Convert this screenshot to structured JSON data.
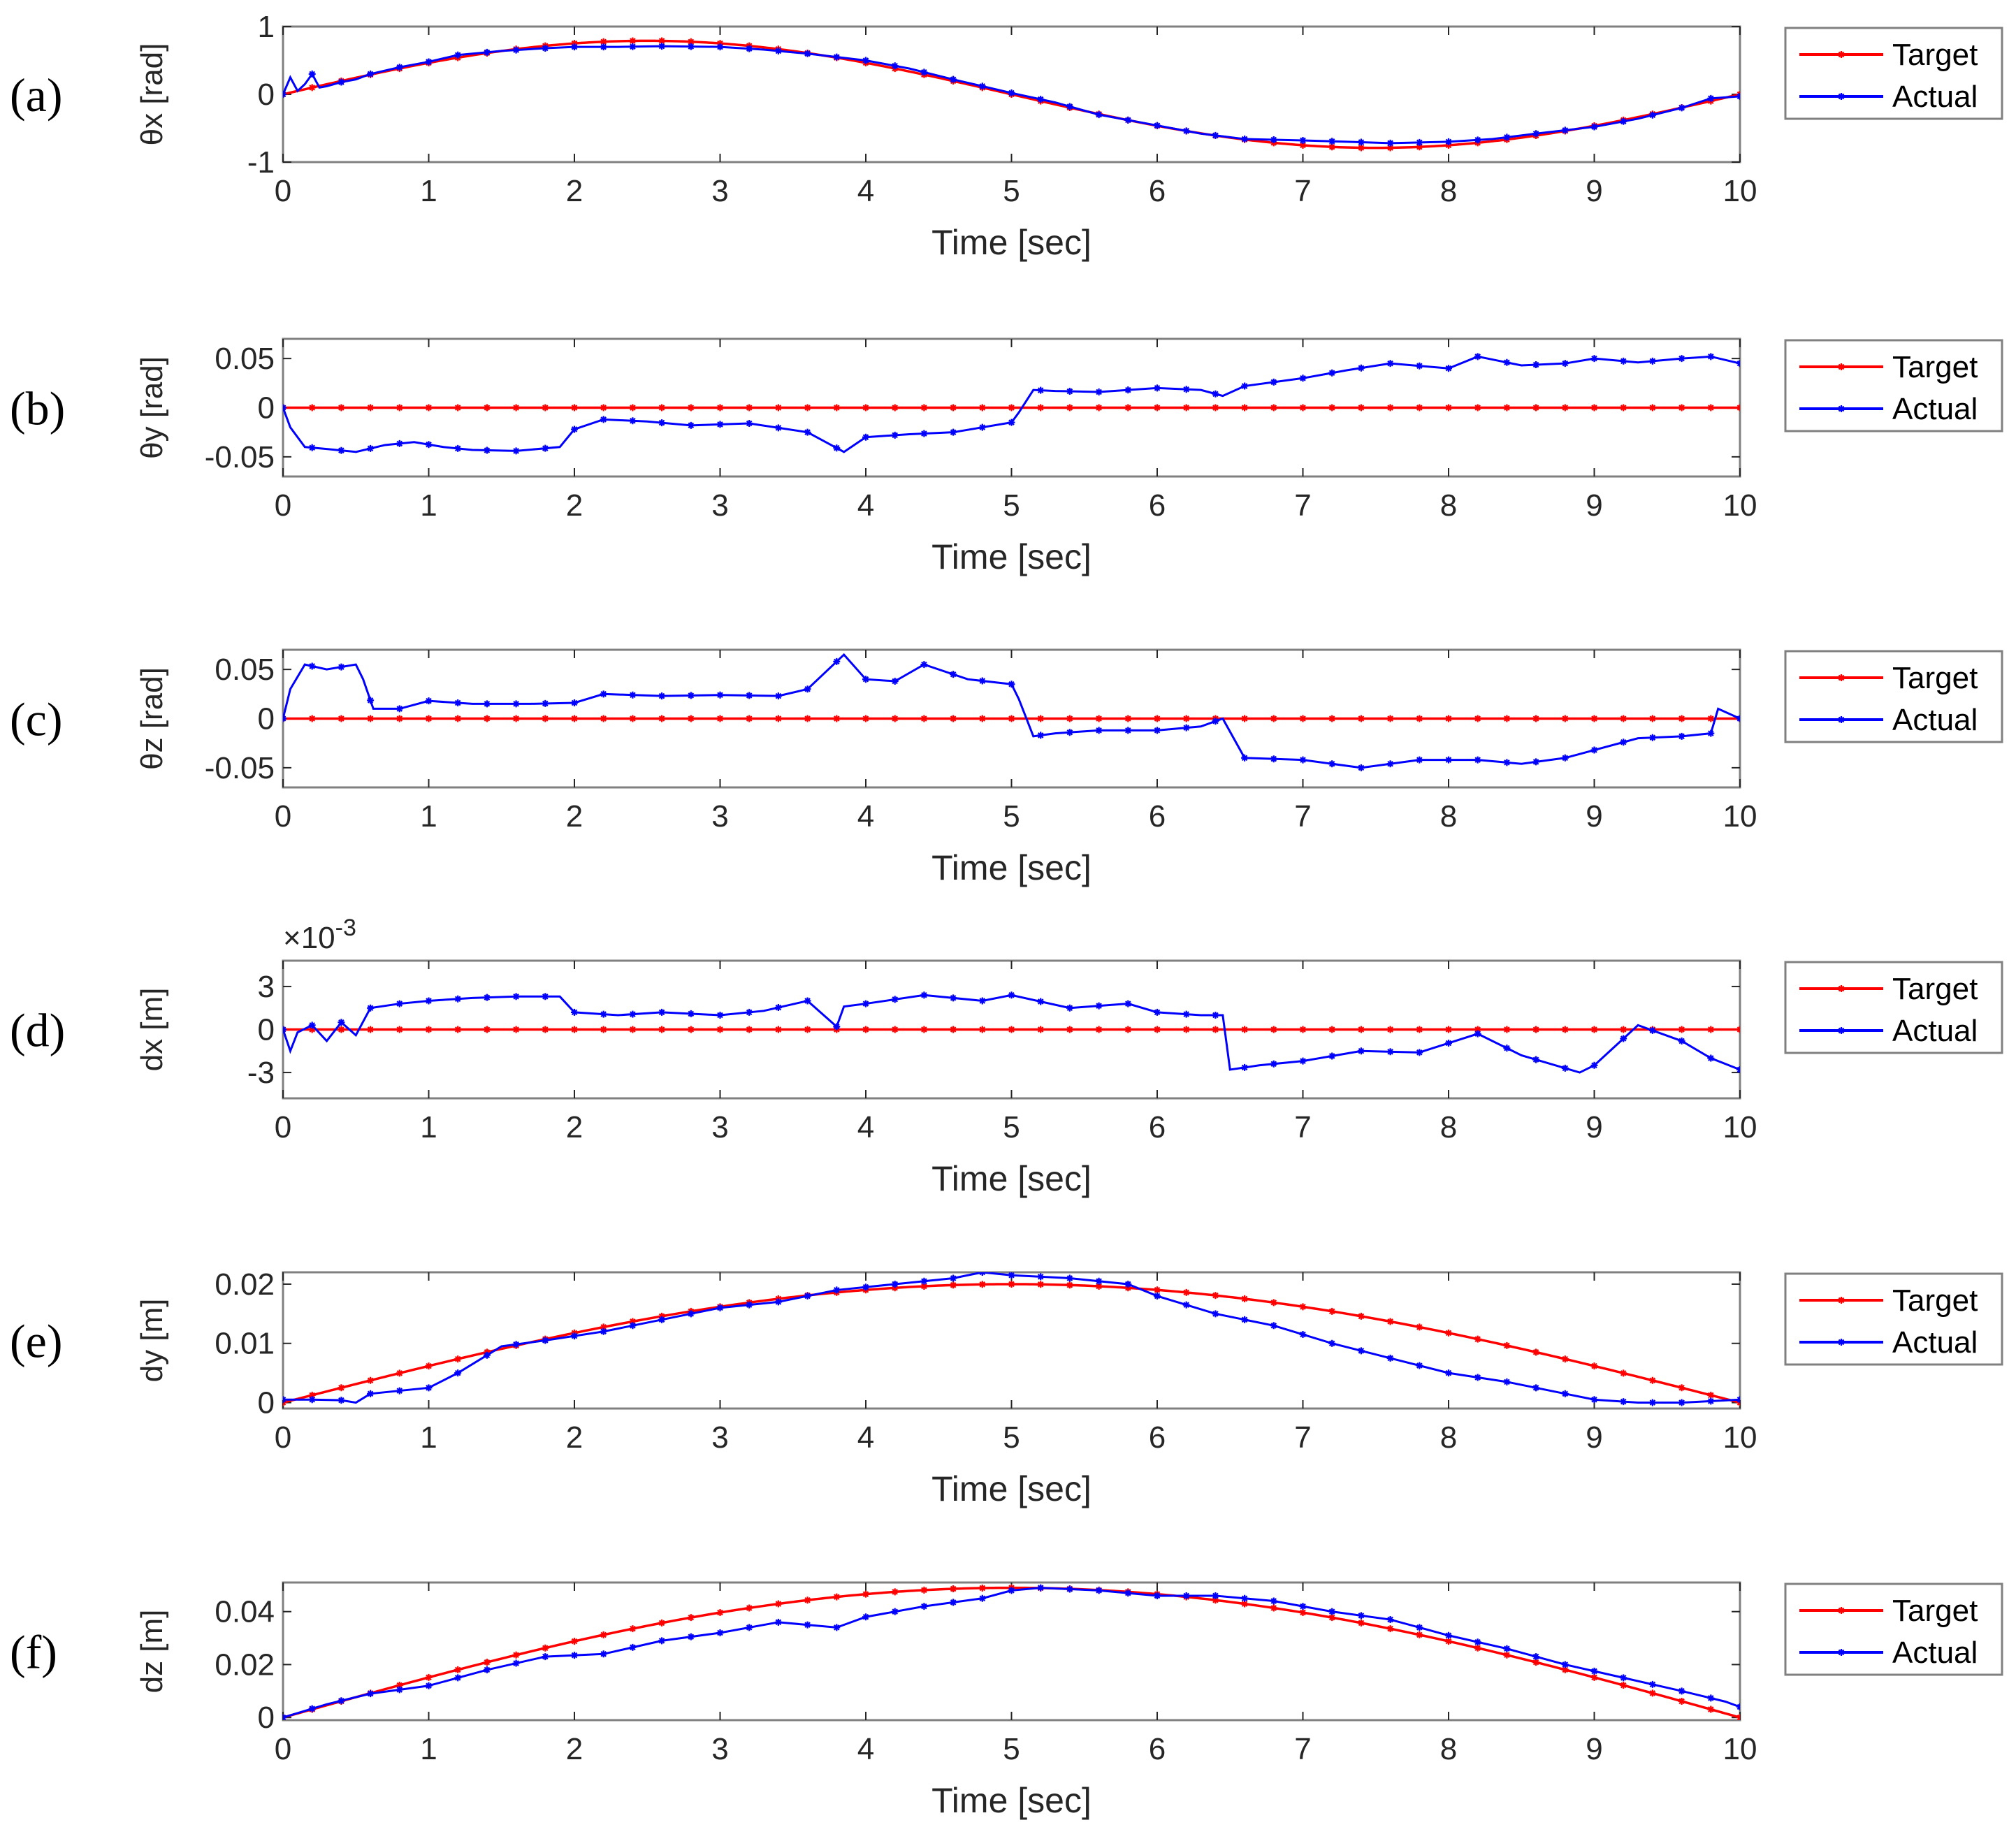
{
  "colors": {
    "target": "#ff0000",
    "actual": "#0000ff",
    "axis": "#262626",
    "frame": "#808080"
  },
  "legend": {
    "target": "Target",
    "actual": "Actual"
  },
  "chart_data": [
    {
      "type": "line",
      "panel": "(a)",
      "xlabel": "Time [sec]",
      "ylabel": "θx [rad]",
      "xlim": [
        0,
        10
      ],
      "ylim": [
        -1,
        1
      ],
      "xticks": [
        0,
        1,
        2,
        3,
        4,
        5,
        6,
        7,
        8,
        9,
        10
      ],
      "xtick_labels": [
        "0",
        "1",
        "2",
        "3",
        "4",
        "5",
        "6",
        "7",
        "8",
        "9",
        "10"
      ],
      "yticks": [
        -1,
        0,
        1
      ],
      "ytick_labels": [
        "-1",
        "0",
        "1"
      ],
      "target_expr": "sin",
      "target_params": {
        "amplitude": 0.79,
        "period": 10
      },
      "actual": {
        "x": [
          0,
          0.05,
          0.1,
          0.15,
          0.2,
          0.25,
          0.3,
          0.4,
          0.5,
          0.6,
          0.8,
          1.0,
          1.2,
          1.5,
          1.8,
          2.0,
          2.3,
          2.6,
          3.0,
          3.3,
          3.6,
          4.0,
          4.3,
          4.6,
          5.0,
          5.3,
          5.6,
          6.0,
          6.3,
          6.6,
          7.0,
          7.3,
          7.6,
          8.0,
          8.3,
          8.6,
          9.0,
          9.3,
          9.6,
          9.8,
          10.0
        ],
        "y": [
          0.0,
          0.25,
          0.05,
          0.15,
          0.3,
          0.1,
          0.12,
          0.18,
          0.22,
          0.3,
          0.4,
          0.48,
          0.58,
          0.64,
          0.68,
          0.7,
          0.7,
          0.71,
          0.7,
          0.66,
          0.6,
          0.5,
          0.38,
          0.22,
          0.02,
          -0.12,
          -0.3,
          -0.46,
          -0.58,
          -0.66,
          -0.68,
          -0.7,
          -0.72,
          -0.7,
          -0.66,
          -0.58,
          -0.48,
          -0.36,
          -0.2,
          -0.06,
          -0.03
        ]
      }
    },
    {
      "type": "line",
      "panel": "(b)",
      "xlabel": "Time [sec]",
      "ylabel": "θy [rad]",
      "xlim": [
        0,
        10
      ],
      "ylim": [
        -0.07,
        0.07
      ],
      "xticks": [
        0,
        1,
        2,
        3,
        4,
        5,
        6,
        7,
        8,
        9,
        10
      ],
      "xtick_labels": [
        "0",
        "1",
        "2",
        "3",
        "4",
        "5",
        "6",
        "7",
        "8",
        "9",
        "10"
      ],
      "yticks": [
        -0.05,
        0,
        0.05
      ],
      "ytick_labels": [
        "-0.05",
        "0",
        "0.05"
      ],
      "target_expr": "zero",
      "actual": {
        "x": [
          0,
          0.05,
          0.15,
          0.3,
          0.5,
          0.7,
          0.9,
          1.1,
          1.3,
          1.6,
          1.9,
          2.0,
          2.2,
          2.5,
          2.8,
          3.2,
          3.6,
          3.85,
          4.0,
          4.3,
          4.6,
          5.0,
          5.05,
          5.15,
          5.3,
          5.6,
          6.0,
          6.3,
          6.45,
          6.6,
          7.0,
          7.3,
          7.6,
          8.0,
          8.2,
          8.5,
          8.8,
          9.0,
          9.3,
          9.6,
          9.8,
          10.0
        ],
        "y": [
          0.0,
          -0.02,
          -0.04,
          -0.042,
          -0.045,
          -0.038,
          -0.035,
          -0.04,
          -0.043,
          -0.044,
          -0.04,
          -0.022,
          -0.012,
          -0.014,
          -0.018,
          -0.016,
          -0.025,
          -0.045,
          -0.03,
          -0.027,
          -0.025,
          -0.015,
          -0.005,
          0.018,
          0.017,
          0.016,
          0.02,
          0.018,
          0.012,
          0.022,
          0.03,
          0.038,
          0.045,
          0.04,
          0.052,
          0.043,
          0.045,
          0.05,
          0.046,
          0.05,
          0.052,
          0.045
        ]
      }
    },
    {
      "type": "line",
      "panel": "(c)",
      "xlabel": "Time [sec]",
      "ylabel": "θz [rad]",
      "xlim": [
        0,
        10
      ],
      "ylim": [
        -0.07,
        0.07
      ],
      "xticks": [
        0,
        1,
        2,
        3,
        4,
        5,
        6,
        7,
        8,
        9,
        10
      ],
      "xtick_labels": [
        "0",
        "1",
        "2",
        "3",
        "4",
        "5",
        "6",
        "7",
        "8",
        "9",
        "10"
      ],
      "yticks": [
        -0.05,
        0,
        0.05
      ],
      "ytick_labels": [
        "-0.05",
        "0",
        "0.05"
      ],
      "target_expr": "zero",
      "actual": {
        "x": [
          0,
          0.05,
          0.15,
          0.3,
          0.5,
          0.55,
          0.62,
          0.8,
          1.0,
          1.3,
          1.7,
          2.0,
          2.2,
          2.6,
          3.0,
          3.4,
          3.6,
          3.85,
          4.0,
          4.2,
          4.4,
          4.7,
          5.0,
          5.05,
          5.15,
          5.3,
          5.6,
          6.0,
          6.3,
          6.45,
          6.6,
          7.0,
          7.4,
          7.8,
          8.2,
          8.5,
          8.8,
          9.0,
          9.3,
          9.6,
          9.8,
          9.85,
          10.0
        ],
        "y": [
          0.0,
          0.03,
          0.055,
          0.05,
          0.055,
          0.04,
          0.01,
          0.01,
          0.018,
          0.015,
          0.015,
          0.016,
          0.025,
          0.023,
          0.024,
          0.023,
          0.03,
          0.065,
          0.04,
          0.038,
          0.055,
          0.04,
          0.035,
          0.02,
          -0.018,
          -0.015,
          -0.012,
          -0.012,
          -0.008,
          0.0,
          -0.04,
          -0.042,
          -0.05,
          -0.042,
          -0.042,
          -0.046,
          -0.04,
          -0.032,
          -0.02,
          -0.018,
          -0.015,
          0.01,
          0.0
        ]
      }
    },
    {
      "type": "line",
      "panel": "(d)",
      "xlabel": "Time [sec]",
      "ylabel": "dx [m]",
      "multiplier": "×10",
      "multiplier_exponent": "-3",
      "xlim": [
        0,
        10
      ],
      "ylim": [
        -4.8,
        4.8
      ],
      "xticks": [
        0,
        1,
        2,
        3,
        4,
        5,
        6,
        7,
        8,
        9,
        10
      ],
      "xtick_labels": [
        "0",
        "1",
        "2",
        "3",
        "4",
        "5",
        "6",
        "7",
        "8",
        "9",
        "10"
      ],
      "yticks": [
        -3,
        0,
        3
      ],
      "ytick_labels": [
        "-3",
        "0",
        "3"
      ],
      "target_expr": "zero",
      "actual": {
        "x": [
          0,
          0.05,
          0.1,
          0.2,
          0.3,
          0.4,
          0.5,
          0.6,
          0.8,
          1.0,
          1.3,
          1.6,
          1.9,
          2.0,
          2.3,
          2.6,
          3.0,
          3.3,
          3.6,
          3.8,
          3.85,
          4.0,
          4.4,
          4.8,
          5.0,
          5.4,
          5.8,
          6.0,
          6.3,
          6.45,
          6.5,
          6.7,
          7.0,
          7.4,
          7.8,
          8.2,
          8.5,
          8.9,
          9.0,
          9.3,
          9.6,
          9.8,
          10.0
        ],
        "y": [
          0,
          -1.5,
          -0.2,
          0.3,
          -0.8,
          0.5,
          -0.4,
          1.5,
          1.8,
          2.0,
          2.2,
          2.3,
          2.3,
          1.2,
          1.0,
          1.2,
          1.0,
          1.3,
          2.0,
          0.2,
          1.6,
          1.8,
          2.4,
          2.0,
          2.4,
          1.5,
          1.8,
          1.2,
          1.0,
          1.0,
          -2.8,
          -2.5,
          -2.2,
          -1.5,
          -1.6,
          -0.3,
          -1.8,
          -3.0,
          -2.5,
          0.3,
          -0.8,
          -2.0,
          -2.8
        ]
      }
    },
    {
      "type": "line",
      "panel": "(e)",
      "xlabel": "Time [sec]",
      "ylabel": "dy [m]",
      "xlim": [
        0,
        10
      ],
      "ylim": [
        -0.001,
        0.022
      ],
      "xticks": [
        0,
        1,
        2,
        3,
        4,
        5,
        6,
        7,
        8,
        9,
        10
      ],
      "xtick_labels": [
        "0",
        "1",
        "2",
        "3",
        "4",
        "5",
        "6",
        "7",
        "8",
        "9",
        "10"
      ],
      "yticks": [
        0,
        0.01,
        0.02
      ],
      "ytick_labels": [
        "0",
        "0.01",
        "0.02"
      ],
      "target_expr": "halfsin",
      "target_params": {
        "amplitude": 0.02,
        "period": 20
      },
      "actual": {
        "x": [
          0,
          0.2,
          0.4,
          0.5,
          0.6,
          0.8,
          1.0,
          1.2,
          1.5,
          1.8,
          2.2,
          2.6,
          3.0,
          3.4,
          3.8,
          4.2,
          4.6,
          4.8,
          5.0,
          5.4,
          5.8,
          6.0,
          6.4,
          6.8,
          7.2,
          7.6,
          8.0,
          8.4,
          8.8,
          9.0,
          9.3,
          9.6,
          10.0
        ],
        "y": [
          0.0005,
          0.0005,
          0.0004,
          0.0,
          0.0015,
          0.002,
          0.0025,
          0.005,
          0.0095,
          0.0105,
          0.012,
          0.014,
          0.016,
          0.017,
          0.019,
          0.02,
          0.021,
          0.022,
          0.0215,
          0.021,
          0.02,
          0.018,
          0.015,
          0.013,
          0.01,
          0.0075,
          0.005,
          0.0035,
          0.0015,
          0.0005,
          0.0,
          0.0,
          0.0005
        ]
      }
    },
    {
      "type": "line",
      "panel": "(f)",
      "xlabel": "Time [sec]",
      "ylabel": "dz [m]",
      "xlim": [
        0,
        10
      ],
      "ylim": [
        -0.001,
        0.051
      ],
      "xticks": [
        0,
        1,
        2,
        3,
        4,
        5,
        6,
        7,
        8,
        9,
        10
      ],
      "xtick_labels": [
        "0",
        "1",
        "2",
        "3",
        "4",
        "5",
        "6",
        "7",
        "8",
        "9",
        "10"
      ],
      "yticks": [
        0,
        0.02,
        0.04
      ],
      "ytick_labels": [
        "0",
        "0.02",
        "0.04"
      ],
      "target_expr": "halfsin",
      "target_params": {
        "amplitude": 0.049,
        "period": 20
      },
      "actual": {
        "x": [
          0,
          0.3,
          0.6,
          1.0,
          1.4,
          1.8,
          2.2,
          2.6,
          3.0,
          3.4,
          3.8,
          4.0,
          4.4,
          4.8,
          5.0,
          5.2,
          5.6,
          6.0,
          6.4,
          6.8,
          7.0,
          7.2,
          7.6,
          8.0,
          8.4,
          8.8,
          9.2,
          9.6,
          9.9,
          10.0
        ],
        "y": [
          0.0,
          0.005,
          0.009,
          0.012,
          0.018,
          0.023,
          0.024,
          0.029,
          0.032,
          0.036,
          0.034,
          0.038,
          0.042,
          0.045,
          0.048,
          0.049,
          0.048,
          0.046,
          0.046,
          0.044,
          0.042,
          0.04,
          0.037,
          0.031,
          0.026,
          0.02,
          0.015,
          0.01,
          0.006,
          0.004
        ]
      }
    }
  ]
}
